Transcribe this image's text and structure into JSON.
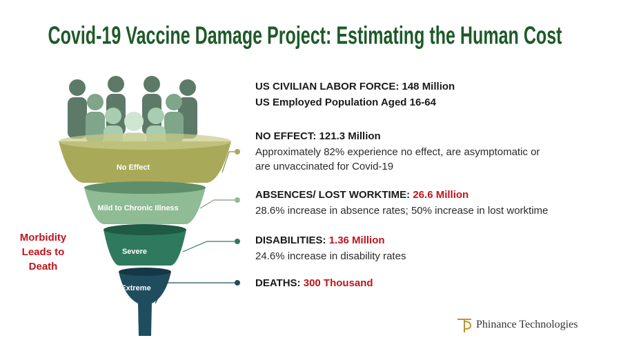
{
  "title": "Covid-19 Vaccine Damage Project:  Estimating the Human Cost",
  "funnel": {
    "stages": [
      "No Effect",
      "Mild to Chronic Illness",
      "Severe",
      "Extreme"
    ],
    "side_label": "Morbidity Leads to Death"
  },
  "summary": {
    "lines": [
      "US CIVILIAN LABOR FORCE: 148 Million",
      "US Employed Population Aged 16-64"
    ]
  },
  "items": [
    {
      "label": "NO EFFECT:",
      "value": "121.3 Million",
      "description_lines": [
        "Approximately 82% experience no effect, are asymptomatic or",
        "are unvaccinated for Covid-19"
      ]
    },
    {
      "label": "ABSENCES/ LOST WORKTIME:",
      "value": "26.6 Million",
      "description_lines": [
        "28.6% increase in absence rates; 50% increase in lost worktime"
      ]
    },
    {
      "label": "DISABILITIES:",
      "value": "1.36 Million",
      "description_lines": [
        "24.6% increase in disability rates"
      ]
    },
    {
      "label": "DEATHS:",
      "value": "300 Thousand",
      "description_lines": []
    }
  ],
  "logo": {
    "name": "Phinance Technologies"
  }
}
